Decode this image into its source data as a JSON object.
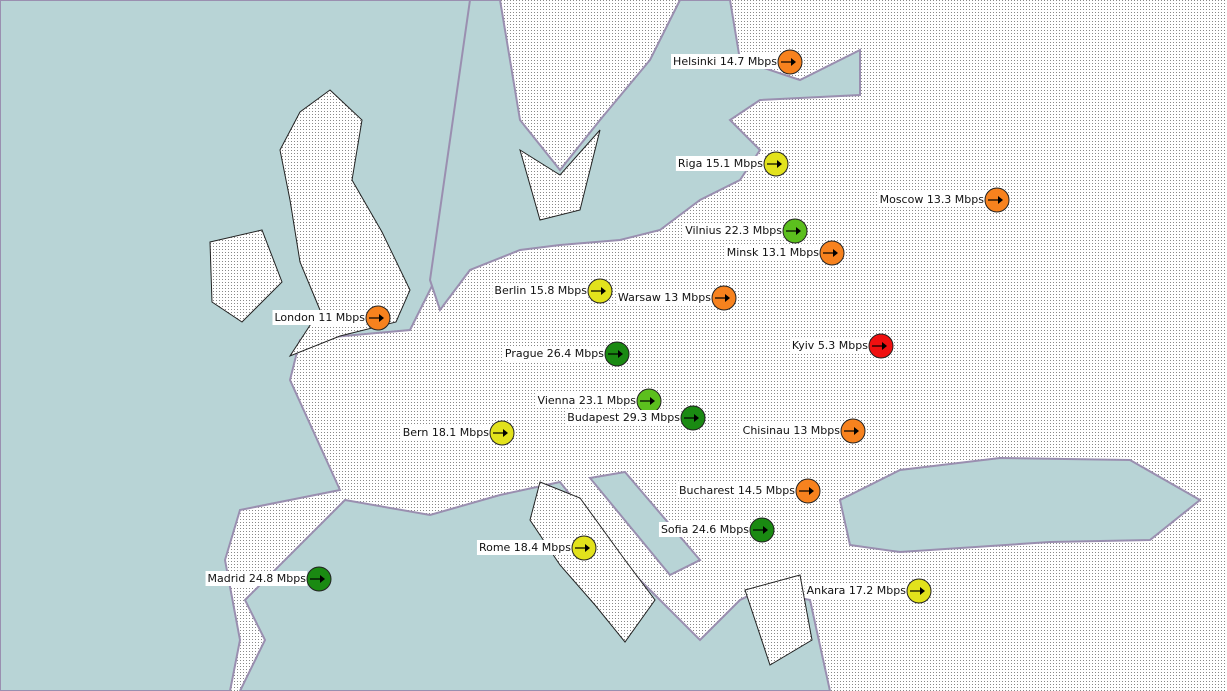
{
  "cities": [
    {
      "label": "Helsinki 14.7 Mbps",
      "color": "#f7821e"
    },
    {
      "label": "Riga 15.1 Mbps",
      "color": "#e2e21c"
    },
    {
      "label": "Moscow 13.3 Mbps",
      "color": "#f7821e"
    },
    {
      "label": "Vilnius 22.3 Mbps",
      "color": "#5cbf1e"
    },
    {
      "label": "Minsk 13.1 Mbps",
      "color": "#f7821e"
    },
    {
      "label": "Berlin 15.8 Mbps",
      "color": "#e2e21c"
    },
    {
      "label": "Warsaw 13 Mbps",
      "color": "#f7821e"
    },
    {
      "label": "London 11 Mbps",
      "color": "#f7821e"
    },
    {
      "label": "Prague 26.4 Mbps",
      "color": "#1a8a12"
    },
    {
      "label": "Kyiv 5.3 Mbps",
      "color": "#f01010"
    },
    {
      "label": "Vienna 23.1 Mbps",
      "color": "#5cbf1e"
    },
    {
      "label": "Budapest 29.3 Mbps",
      "color": "#1a8a12"
    },
    {
      "label": "Bern 18.1 Mbps",
      "color": "#e2e21c"
    },
    {
      "label": "Chisinau 13 Mbps",
      "color": "#f7821e"
    },
    {
      "label": "Bucharest 14.5 Mbps",
      "color": "#f7821e"
    },
    {
      "label": "Sofia 24.6 Mbps",
      "color": "#1a8a12"
    },
    {
      "label": "Rome 18.4 Mbps",
      "color": "#e2e21c"
    },
    {
      "label": "Madrid 24.8 Mbps",
      "color": "#1a8a12"
    },
    {
      "label": "Ankara 17.2 Mbps",
      "color": "#e2e21c"
    }
  ]
}
